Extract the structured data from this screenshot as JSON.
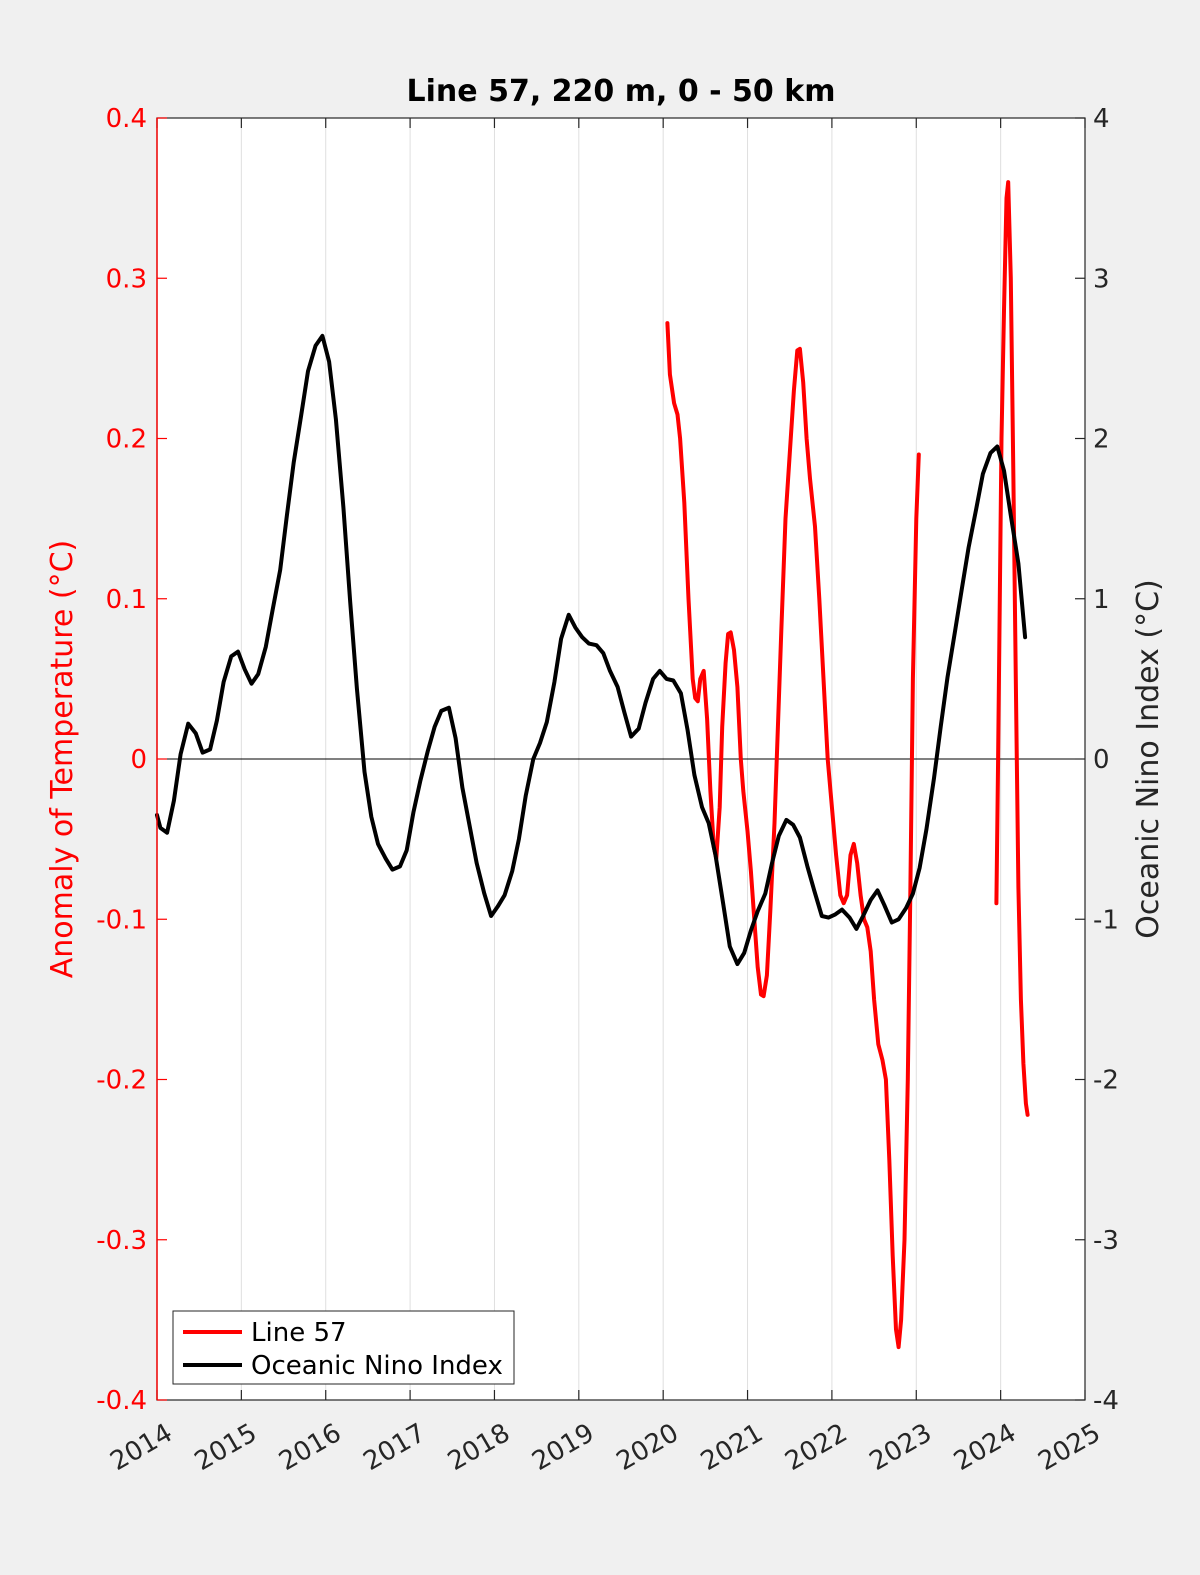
{
  "colors": {
    "background": "#f0f0f0",
    "plot_area": "#ffffff",
    "line57": "#ff0000",
    "oni": "#000000",
    "left_axis": "#ff0000",
    "right_axis": "#262626",
    "grid": "#dfdfdf"
  },
  "chart_data": {
    "type": "line",
    "title": "Line 57, 220 m, 0 - 50 km",
    "xlabel": "",
    "ylabel_left": "Anomaly of Temperature (°C)",
    "ylabel_right": "Oceanic Nino Index (°C)",
    "xlim": [
      2014,
      2025
    ],
    "ylim_left": [
      -0.4,
      0.4
    ],
    "ylim_right": [
      -4,
      4
    ],
    "x_ticks": [
      "2014",
      "2015",
      "2016",
      "2017",
      "2018",
      "2019",
      "2020",
      "2021",
      "2022",
      "2023",
      "2024",
      "2025"
    ],
    "y_ticks_left": [
      "-0.4",
      "-0.3",
      "-0.2",
      "-0.1",
      "0",
      "0.1",
      "0.2",
      "0.3",
      "0.4"
    ],
    "y_ticks_right": [
      "-4",
      "-3",
      "-2",
      "-1",
      "0",
      "1",
      "2",
      "3",
      "4"
    ],
    "vertical_grid": true,
    "zero_line": true,
    "legend_position": "bottom-left",
    "legend": [
      "Line 57",
      "Oceanic Nino Index"
    ],
    "series": [
      {
        "name": "Line 57",
        "axis": "left",
        "segments": [
          [
            [
              2020.05,
              0.272
            ],
            [
              2020.08,
              0.24
            ],
            [
              2020.13,
              0.222
            ],
            [
              2020.17,
              0.215
            ],
            [
              2020.2,
              0.2
            ],
            [
              2020.25,
              0.16
            ],
            [
              2020.3,
              0.1
            ],
            [
              2020.35,
              0.05
            ],
            [
              2020.38,
              0.038
            ],
            [
              2020.41,
              0.036
            ],
            [
              2020.44,
              0.05
            ],
            [
              2020.48,
              0.055
            ],
            [
              2020.52,
              0.025
            ],
            [
              2020.56,
              -0.02
            ],
            [
              2020.6,
              -0.055
            ],
            [
              2020.63,
              -0.062
            ],
            [
              2020.67,
              -0.03
            ],
            [
              2020.7,
              0.02
            ],
            [
              2020.74,
              0.06
            ],
            [
              2020.77,
              0.078
            ],
            [
              2020.8,
              0.079
            ],
            [
              2020.84,
              0.068
            ],
            [
              2020.88,
              0.045
            ],
            [
              2020.92,
              0.0
            ],
            [
              2020.95,
              -0.02
            ],
            [
              2021.0,
              -0.045
            ],
            [
              2021.04,
              -0.07
            ],
            [
              2021.08,
              -0.1
            ],
            [
              2021.12,
              -0.13
            ],
            [
              2021.16,
              -0.147
            ],
            [
              2021.19,
              -0.148
            ],
            [
              2021.23,
              -0.135
            ],
            [
              2021.27,
              -0.095
            ],
            [
              2021.32,
              -0.04
            ],
            [
              2021.36,
              0.02
            ],
            [
              2021.4,
              0.08
            ],
            [
              2021.45,
              0.15
            ],
            [
              2021.5,
              0.19
            ],
            [
              2021.55,
              0.23
            ],
            [
              2021.59,
              0.255
            ],
            [
              2021.62,
              0.256
            ],
            [
              2021.66,
              0.235
            ],
            [
              2021.7,
              0.2
            ],
            [
              2021.74,
              0.175
            ],
            [
              2021.8,
              0.145
            ],
            [
              2021.85,
              0.1
            ],
            [
              2021.9,
              0.05
            ],
            [
              2021.95,
              0.0
            ],
            [
              2022.0,
              -0.03
            ],
            [
              2022.05,
              -0.06
            ],
            [
              2022.1,
              -0.085
            ],
            [
              2022.14,
              -0.09
            ],
            [
              2022.18,
              -0.085
            ],
            [
              2022.22,
              -0.06
            ],
            [
              2022.26,
              -0.053
            ],
            [
              2022.3,
              -0.065
            ],
            [
              2022.34,
              -0.085
            ],
            [
              2022.38,
              -0.1
            ],
            [
              2022.42,
              -0.105
            ],
            [
              2022.46,
              -0.12
            ],
            [
              2022.5,
              -0.15
            ],
            [
              2022.55,
              -0.178
            ],
            [
              2022.6,
              -0.188
            ],
            [
              2022.64,
              -0.2
            ],
            [
              2022.68,
              -0.25
            ],
            [
              2022.72,
              -0.31
            ],
            [
              2022.76,
              -0.356
            ],
            [
              2022.79,
              -0.367
            ],
            [
              2022.82,
              -0.35
            ],
            [
              2022.86,
              -0.3
            ],
            [
              2022.9,
              -0.2
            ],
            [
              2022.93,
              -0.08
            ],
            [
              2022.96,
              0.05
            ],
            [
              2023.0,
              0.15
            ],
            [
              2023.03,
              0.19
            ]
          ],
          [
            [
              2023.95,
              -0.09
            ],
            [
              2023.97,
              0.0
            ],
            [
              2023.99,
              0.1
            ],
            [
              2024.01,
              0.2
            ],
            [
              2024.04,
              0.28
            ],
            [
              2024.07,
              0.35
            ],
            [
              2024.09,
              0.36
            ],
            [
              2024.12,
              0.3
            ],
            [
              2024.15,
              0.18
            ],
            [
              2024.18,
              0.05
            ],
            [
              2024.21,
              -0.08
            ],
            [
              2024.24,
              -0.15
            ],
            [
              2024.27,
              -0.19
            ],
            [
              2024.3,
              -0.215
            ],
            [
              2024.32,
              -0.222
            ]
          ]
        ]
      },
      {
        "name": "Oceanic Nino Index",
        "axis": "right",
        "segments": [
          [
            [
              2014.0,
              -0.35
            ],
            [
              2014.04,
              -0.43
            ],
            [
              2014.12,
              -0.46
            ],
            [
              2014.2,
              -0.26
            ],
            [
              2014.28,
              0.03
            ],
            [
              2014.37,
              0.22
            ],
            [
              2014.46,
              0.16
            ],
            [
              2014.54,
              0.04
            ],
            [
              2014.63,
              0.06
            ],
            [
              2014.71,
              0.24
            ],
            [
              2014.79,
              0.48
            ],
            [
              2014.88,
              0.64
            ],
            [
              2014.96,
              0.67
            ],
            [
              2015.04,
              0.56
            ],
            [
              2015.12,
              0.47
            ],
            [
              2015.2,
              0.53
            ],
            [
              2015.29,
              0.7
            ],
            [
              2015.37,
              0.93
            ],
            [
              2015.46,
              1.18
            ],
            [
              2015.54,
              1.52
            ],
            [
              2015.62,
              1.85
            ],
            [
              2015.71,
              2.15
            ],
            [
              2015.79,
              2.42
            ],
            [
              2015.88,
              2.58
            ],
            [
              2015.96,
              2.64
            ],
            [
              2016.04,
              2.48
            ],
            [
              2016.12,
              2.12
            ],
            [
              2016.21,
              1.57
            ],
            [
              2016.29,
              0.98
            ],
            [
              2016.37,
              0.44
            ],
            [
              2016.46,
              -0.08
            ],
            [
              2016.54,
              -0.36
            ],
            [
              2016.62,
              -0.53
            ],
            [
              2016.71,
              -0.62
            ],
            [
              2016.79,
              -0.69
            ],
            [
              2016.88,
              -0.67
            ],
            [
              2016.96,
              -0.57
            ],
            [
              2017.04,
              -0.33
            ],
            [
              2017.12,
              -0.14
            ],
            [
              2017.21,
              0.05
            ],
            [
              2017.29,
              0.2
            ],
            [
              2017.37,
              0.3
            ],
            [
              2017.46,
              0.32
            ],
            [
              2017.54,
              0.13
            ],
            [
              2017.62,
              -0.18
            ],
            [
              2017.71,
              -0.43
            ],
            [
              2017.79,
              -0.65
            ],
            [
              2017.88,
              -0.84
            ],
            [
              2017.96,
              -0.98
            ],
            [
              2018.04,
              -0.92
            ],
            [
              2018.12,
              -0.85
            ],
            [
              2018.21,
              -0.7
            ],
            [
              2018.29,
              -0.5
            ],
            [
              2018.37,
              -0.23
            ],
            [
              2018.46,
              0.0
            ],
            [
              2018.54,
              0.1
            ],
            [
              2018.62,
              0.23
            ],
            [
              2018.71,
              0.48
            ],
            [
              2018.79,
              0.75
            ],
            [
              2018.88,
              0.9
            ],
            [
              2018.96,
              0.82
            ],
            [
              2019.04,
              0.76
            ],
            [
              2019.12,
              0.72
            ],
            [
              2019.21,
              0.71
            ],
            [
              2019.29,
              0.66
            ],
            [
              2019.37,
              0.55
            ],
            [
              2019.46,
              0.45
            ],
            [
              2019.54,
              0.29
            ],
            [
              2019.62,
              0.14
            ],
            [
              2019.71,
              0.19
            ],
            [
              2019.79,
              0.35
            ],
            [
              2019.88,
              0.5
            ],
            [
              2019.96,
              0.55
            ],
            [
              2020.04,
              0.5
            ],
            [
              2020.12,
              0.49
            ],
            [
              2020.21,
              0.41
            ],
            [
              2020.29,
              0.18
            ],
            [
              2020.37,
              -0.1
            ],
            [
              2020.46,
              -0.3
            ],
            [
              2020.54,
              -0.4
            ],
            [
              2020.62,
              -0.6
            ],
            [
              2020.71,
              -0.9
            ],
            [
              2020.79,
              -1.17
            ],
            [
              2020.88,
              -1.28
            ],
            [
              2020.96,
              -1.21
            ],
            [
              2021.04,
              -1.07
            ],
            [
              2021.12,
              -0.95
            ],
            [
              2021.21,
              -0.84
            ],
            [
              2021.29,
              -0.65
            ],
            [
              2021.37,
              -0.48
            ],
            [
              2021.46,
              -0.38
            ],
            [
              2021.54,
              -0.41
            ],
            [
              2021.62,
              -0.49
            ],
            [
              2021.71,
              -0.67
            ],
            [
              2021.79,
              -0.82
            ],
            [
              2021.88,
              -0.98
            ],
            [
              2021.96,
              -0.99
            ],
            [
              2022.04,
              -0.97
            ],
            [
              2022.12,
              -0.94
            ],
            [
              2022.21,
              -0.99
            ],
            [
              2022.29,
              -1.06
            ],
            [
              2022.37,
              -0.98
            ],
            [
              2022.46,
              -0.88
            ],
            [
              2022.54,
              -0.82
            ],
            [
              2022.62,
              -0.91
            ],
            [
              2022.71,
              -1.02
            ],
            [
              2022.79,
              -1.0
            ],
            [
              2022.88,
              -0.93
            ],
            [
              2022.96,
              -0.84
            ],
            [
              2023.04,
              -0.68
            ],
            [
              2023.12,
              -0.44
            ],
            [
              2023.21,
              -0.12
            ],
            [
              2023.29,
              0.2
            ],
            [
              2023.37,
              0.51
            ],
            [
              2023.46,
              0.8
            ],
            [
              2023.54,
              1.06
            ],
            [
              2023.62,
              1.32
            ],
            [
              2023.71,
              1.56
            ],
            [
              2023.79,
              1.78
            ],
            [
              2023.88,
              1.91
            ],
            [
              2023.96,
              1.95
            ],
            [
              2024.04,
              1.8
            ],
            [
              2024.12,
              1.52
            ],
            [
              2024.21,
              1.22
            ],
            [
              2024.29,
              0.76
            ]
          ]
        ]
      }
    ]
  }
}
